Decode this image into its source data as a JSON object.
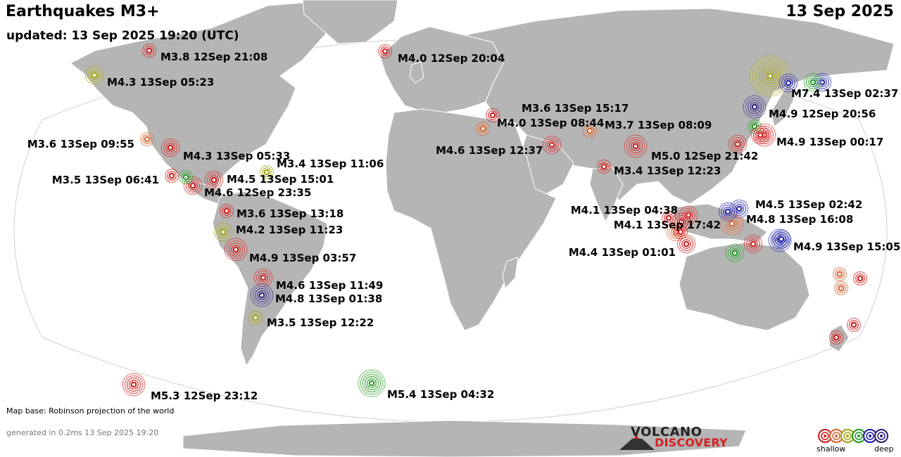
{
  "header": {
    "title": "Earthquakes M3+",
    "updated": "updated: 13 Sep 2025 19:20 (UTC)",
    "date": "13 Sep 2025"
  },
  "footer": {
    "map_base": "Map base: Robinson projection of the world",
    "generated": "generated in 0.2ms 13 Sep 2025 19:20"
  },
  "logo": {
    "line1": "VOLCANO",
    "line2": "DISCOVERY"
  },
  "depth_legend": {
    "shallow_label": "shallow",
    "deep_label": "deep",
    "colors": [
      "#d01818",
      "#d8602a",
      "#a0a010",
      "#1e9a1e",
      "#1a1aa8",
      "#2a1a7a"
    ]
  },
  "colors": {
    "land": "#b5b5b5",
    "ocean": "#ffffff",
    "text": "#000000"
  },
  "earthquakes": [
    {
      "label": "M3.8 12Sep 21:08",
      "color": "#d01818",
      "mag": 3.8
    },
    {
      "label": "M4.3 13Sep 05:23",
      "color": "#a0a010",
      "mag": 4.3
    },
    {
      "label": "M4.0 12Sep 20:04",
      "color": "#d01818",
      "mag": 4.0
    },
    {
      "label": "M3.6 13Sep 09:55",
      "color": "#d8602a",
      "mag": 3.6
    },
    {
      "label": "M4.3 13Sep 05:33",
      "color": "#d01818",
      "mag": 4.3
    },
    {
      "label": "M3.4 13Sep 11:06",
      "color": "#a0a010",
      "mag": 3.4
    },
    {
      "label": "M3.5 13Sep 06:41",
      "color": "#d01818",
      "mag": 3.5
    },
    {
      "label": "M4.5 13Sep 15:01",
      "color": "#d01818",
      "mag": 4.5
    },
    {
      "label": "M4.6 12Sep 23:35",
      "color": "#d01818",
      "mag": 4.6
    },
    {
      "label": "M3.6 13Sep 13:18",
      "color": "#d01818",
      "mag": 3.6
    },
    {
      "label": "M4.2 13Sep 11:23",
      "color": "#a0a010",
      "mag": 4.2
    },
    {
      "label": "M4.9 13Sep 03:57",
      "color": "#d01818",
      "mag": 4.9
    },
    {
      "label": "M4.6 13Sep 11:49",
      "color": "#d01818",
      "mag": 4.6
    },
    {
      "label": "M4.8 13Sep 01:38",
      "color": "#2a1a7a",
      "mag": 4.8
    },
    {
      "label": "M3.5 13Sep 12:22",
      "color": "#a0a010",
      "mag": 3.5
    },
    {
      "label": "M5.3 12Sep 23:12",
      "color": "#d01818",
      "mag": 5.3
    },
    {
      "label": "M5.4 13Sep 04:32",
      "color": "#1e9a1e",
      "mag": 5.4
    },
    {
      "label": "M3.6 13Sep 15:17",
      "color": "#d01818",
      "mag": 3.6
    },
    {
      "label": "M4.0 13Sep 08:44",
      "color": "#d8602a",
      "mag": 4.0
    },
    {
      "label": "M4.6 13Sep 12:37",
      "color": "#d01818",
      "mag": 4.6
    },
    {
      "label": "M3.7 13Sep 08:09",
      "color": "#d8602a",
      "mag": 3.7
    },
    {
      "label": "M5.0 12Sep 21:42",
      "color": "#d01818",
      "mag": 5.0
    },
    {
      "label": "M3.4 13Sep 12:23",
      "color": "#d01818",
      "mag": 3.4
    },
    {
      "label": "M7.4 13Sep 02:37",
      "color": "#a0a010",
      "mag": 7.4
    },
    {
      "label": "M4.9 12Sep 20:56",
      "color": "#2a1a7a",
      "mag": 4.9
    },
    {
      "label": "M4.9 13Sep 00:17",
      "color": "#d01818",
      "mag": 4.9
    },
    {
      "label": "M4.1 13Sep 04:38",
      "color": "#d01818",
      "mag": 4.1
    },
    {
      "label": "M4.1 13Sep 17:42",
      "color": "#d8602a",
      "mag": 4.1
    },
    {
      "label": "M4.4 13Sep 01:01",
      "color": "#d01818",
      "mag": 4.4
    },
    {
      "label": "M4.5 13Sep 02:42",
      "color": "#1a1aa8",
      "mag": 4.5
    },
    {
      "label": "M4.8 13Sep 16:08",
      "color": "#d8602a",
      "mag": 4.8
    },
    {
      "label": "M4.9 13Sep 15:05",
      "color": "#1a1aa8",
      "mag": 4.9
    }
  ],
  "unlabeled_quakes": [
    {
      "color": "#1e9a1e"
    },
    {
      "color": "#1e9a1e"
    },
    {
      "color": "#1a1aa8"
    },
    {
      "color": "#1e9a1e"
    },
    {
      "color": "#1a1aa8"
    },
    {
      "color": "#d01818"
    },
    {
      "color": "#d01818"
    },
    {
      "color": "#d01818"
    },
    {
      "color": "#d01818"
    },
    {
      "color": "#d01818"
    },
    {
      "color": "#d01818"
    },
    {
      "color": "#1e9a1e"
    },
    {
      "color": "#d8602a"
    },
    {
      "color": "#d01818"
    },
    {
      "color": "#d8602a"
    },
    {
      "color": "#d01818"
    },
    {
      "color": "#d01818"
    },
    {
      "color": "#1a1aa8"
    },
    {
      "color": "#1a1aa8"
    }
  ]
}
